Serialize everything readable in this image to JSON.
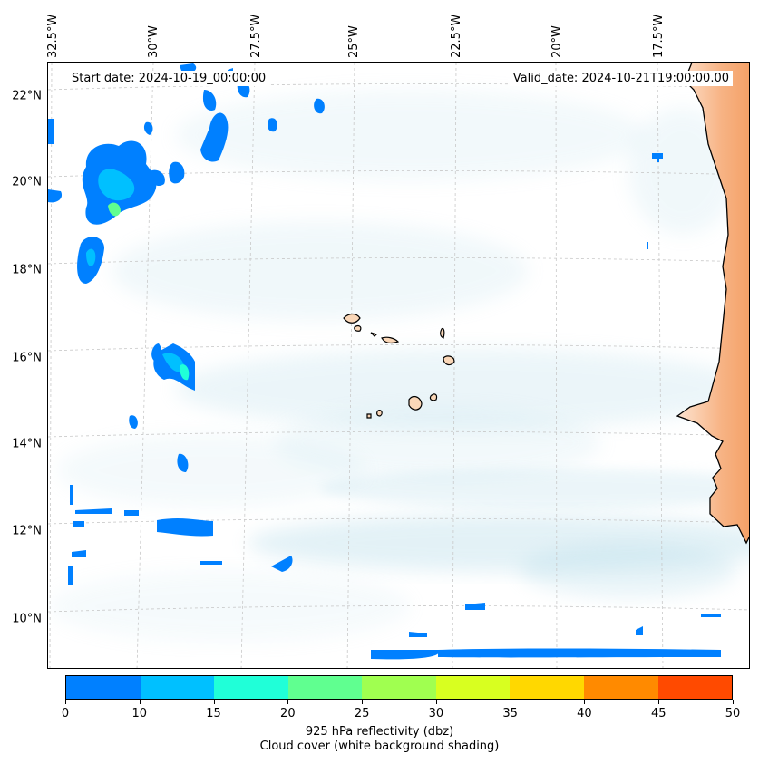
{
  "map": {
    "start_date": "Start date: 2024-10-19_00:00:00",
    "valid_date": "Valid_date: 2024-10-21T19:00:00.00",
    "lon_extent": [
      -33.0,
      -15.0
    ],
    "lat_extent": [
      8.9,
      22.8
    ],
    "lon_labels": [
      {
        "lon": -32.5,
        "text": "32.5°W"
      },
      {
        "lon": -30.0,
        "text": "30°W"
      },
      {
        "lon": -27.5,
        "text": "27.5°W"
      },
      {
        "lon": -25.0,
        "text": "25°W"
      },
      {
        "lon": -22.5,
        "text": "22.5°W"
      },
      {
        "lon": -20.0,
        "text": "20°W"
      },
      {
        "lon": -17.5,
        "text": "17.5°W"
      }
    ],
    "lat_labels": [
      {
        "lat": 22,
        "text": "22°N"
      },
      {
        "lat": 20,
        "text": "20°N"
      },
      {
        "lat": 18,
        "text": "18°N"
      },
      {
        "lat": 16,
        "text": "16°N"
      },
      {
        "lat": 14,
        "text": "14°N"
      },
      {
        "lat": 12,
        "text": "12°N"
      },
      {
        "lat": 10,
        "text": "10°N"
      }
    ],
    "colors": {
      "land_warm": "#f4a066",
      "cloud_shade": "#a9d6e5",
      "coast": "#000000",
      "grid": "#c8c8c8"
    }
  },
  "colorbar": {
    "label_line1": "925 hPa reflectivity (dbz)",
    "label_line2": "Cloud cover (white background shading)",
    "ticks": [
      "0",
      "10",
      "15",
      "20",
      "25",
      "30",
      "35",
      "40",
      "45",
      "50"
    ],
    "colors": [
      "#0080ff",
      "#00c0ff",
      "#20ffd8",
      "#60ff90",
      "#a0ff50",
      "#d8ff20",
      "#ffd800",
      "#ff8a00",
      "#ff4a00"
    ]
  }
}
